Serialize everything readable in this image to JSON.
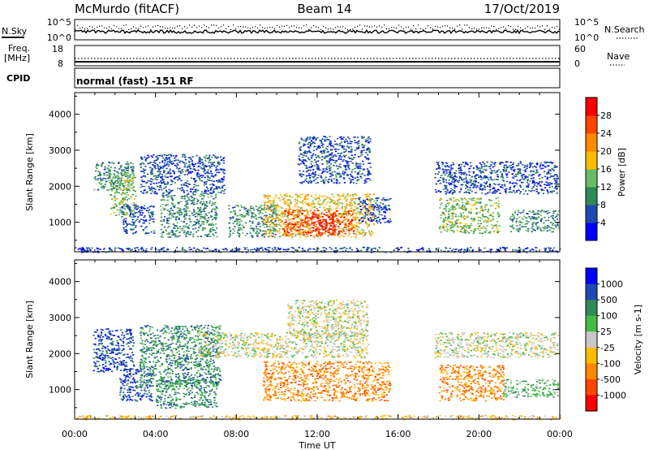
{
  "header": {
    "station": "McMurdo (fitACF)",
    "beam": "Beam 14",
    "date": "17/Oct/2019"
  },
  "top_panels": {
    "nsky_label": "N.Sky",
    "nsearch_label": "N.Search",
    "noise_ticks": [
      "10^5",
      "10^0"
    ],
    "freq_label_1": "Freq.",
    "freq_label_2": "[MHz]",
    "freq_ticks": [
      "18",
      "8"
    ],
    "nave_label": "Nave",
    "nave_ticks": [
      "60",
      "0"
    ],
    "cpid_label": "CPID",
    "cpid_text": "normal (fast) -151 RF"
  },
  "colors": {
    "power": [
      "#0000ff",
      "#1f49b0",
      "#2e8a57",
      "#66bb66",
      "#ffbb00",
      "#ff8800",
      "#ff4400",
      "#ff0000"
    ],
    "velocity": [
      "#ff0000",
      "#ff4400",
      "#ff8800",
      "#ffbb00",
      "#c8c8c8",
      "#44bb44",
      "#2e8a57",
      "#1f49b0",
      "#0000ff"
    ],
    "ground": "#808080"
  },
  "chart_data": [
    {
      "type": "heatmap",
      "name": "power",
      "ylabel": "Slant Range [km]",
      "xlabel": "Time UT",
      "xticks": [
        "00:00",
        "04:00",
        "08:00",
        "12:00",
        "16:00",
        "20:00",
        "00:00"
      ],
      "xlim_hours": [
        0,
        24
      ],
      "ylim_km": [
        180,
        4600
      ],
      "yticks": [
        1000,
        2000,
        3000,
        4000
      ],
      "colorbar": {
        "label": "Power [dB]",
        "ticks": [
          "4",
          "8",
          "12",
          "16",
          "20",
          "24",
          "28"
        ],
        "range": [
          0,
          32
        ]
      },
      "regions": [
        {
          "t0": 0.9,
          "t1": 2.9,
          "r0": 1900,
          "r1": 2700,
          "level": 2
        },
        {
          "t0": 1.7,
          "t1": 3.0,
          "r0": 1200,
          "r1": 2400,
          "level": 3
        },
        {
          "t0": 2.3,
          "t1": 3.9,
          "r0": 700,
          "r1": 1500,
          "level": 1
        },
        {
          "t0": 3.2,
          "t1": 7.4,
          "r0": 1800,
          "r1": 2900,
          "level": 1
        },
        {
          "t0": 4.2,
          "t1": 7.0,
          "r0": 600,
          "r1": 1800,
          "level": 2
        },
        {
          "t0": 7.6,
          "t1": 10.0,
          "r0": 600,
          "r1": 1500,
          "level": 2
        },
        {
          "t0": 9.3,
          "t1": 14.8,
          "r0": 600,
          "r1": 1800,
          "level": 4
        },
        {
          "t0": 10.3,
          "t1": 13.8,
          "r0": 650,
          "r1": 1350,
          "level": 6
        },
        {
          "t0": 11.7,
          "t1": 12.9,
          "r0": 700,
          "r1": 1250,
          "level": 7
        },
        {
          "t0": 14.0,
          "t1": 15.6,
          "r0": 1000,
          "r1": 1700,
          "level": 1
        },
        {
          "t0": 11.0,
          "t1": 14.6,
          "r0": 2100,
          "r1": 3400,
          "level": 1
        },
        {
          "t0": 17.8,
          "t1": 23.9,
          "r0": 1800,
          "r1": 2700,
          "level": 1
        },
        {
          "t0": 18.0,
          "t1": 21.0,
          "r0": 700,
          "r1": 1700,
          "level": 3
        },
        {
          "t0": 21.5,
          "t1": 23.9,
          "r0": 750,
          "r1": 1350,
          "level": 2
        },
        {
          "t0": 0.0,
          "t1": 24.0,
          "r0": 180,
          "r1": 320,
          "level": 1
        }
      ]
    },
    {
      "type": "heatmap",
      "name": "velocity",
      "ylabel": "Slant Range [km]",
      "xlabel": "Time UT",
      "xticks": [
        "00:00",
        "04:00",
        "08:00",
        "12:00",
        "16:00",
        "20:00",
        "00:00"
      ],
      "xlim_hours": [
        0,
        24
      ],
      "ylim_km": [
        180,
        4600
      ],
      "yticks": [
        1000,
        2000,
        3000,
        4000
      ],
      "colorbar": {
        "label": "Velocity [m s-1]",
        "ticks": [
          "1000",
          "500",
          "100",
          "25",
          "-25",
          "-100",
          "-500",
          "-1000"
        ]
      },
      "regions": [
        {
          "t0": 0.9,
          "t1": 2.9,
          "r0": 1500,
          "r1": 2700,
          "level": 7
        },
        {
          "t0": 2.2,
          "t1": 3.8,
          "r0": 700,
          "r1": 1600,
          "level": 7
        },
        {
          "t0": 3.2,
          "t1": 7.2,
          "r0": 1100,
          "r1": 2800,
          "level": 6
        },
        {
          "t0": 4.0,
          "t1": 7.0,
          "r0": 500,
          "r1": 1300,
          "level": 6
        },
        {
          "t0": 6.0,
          "t1": 14.5,
          "r0": 1900,
          "r1": 2600,
          "level": 4
        },
        {
          "t0": 9.3,
          "t1": 15.6,
          "r0": 700,
          "r1": 1800,
          "level": 2
        },
        {
          "t0": 10.5,
          "t1": 14.5,
          "r0": 2500,
          "r1": 3500,
          "level": 4
        },
        {
          "t0": 17.8,
          "t1": 23.9,
          "r0": 1900,
          "r1": 2600,
          "level": 4
        },
        {
          "t0": 18.0,
          "t1": 21.2,
          "r0": 700,
          "r1": 1700,
          "level": 2
        },
        {
          "t0": 21.2,
          "t1": 23.9,
          "r0": 800,
          "r1": 1300,
          "level": 5
        },
        {
          "t0": 0.0,
          "t1": 24.0,
          "r0": 180,
          "r1": 300,
          "level": 3
        }
      ]
    }
  ]
}
